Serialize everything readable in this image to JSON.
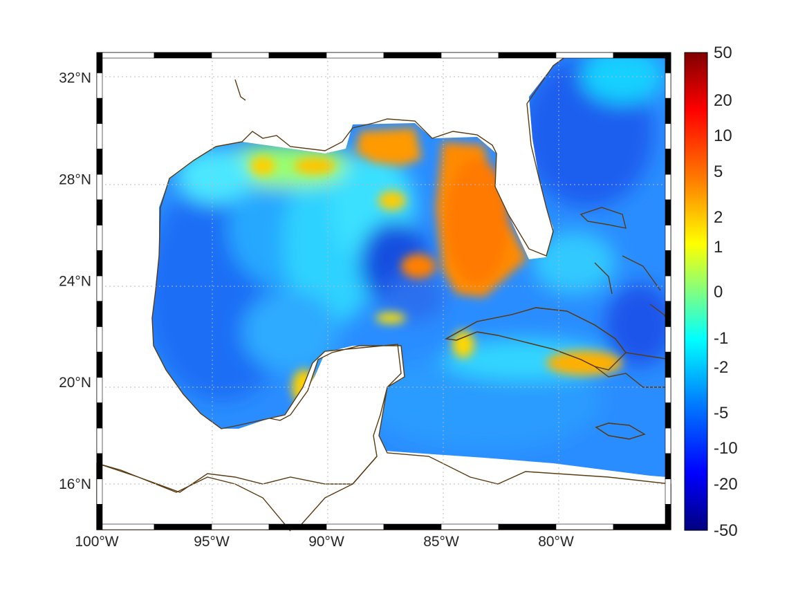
{
  "map": {
    "lon_range": [
      -100,
      -75
    ],
    "lat_range": [
      14.2,
      33
    ],
    "longitude_ticks": [
      {
        "lon": -100,
        "label": "100°W"
      },
      {
        "lon": -95,
        "label": "95°W"
      },
      {
        "lon": -90,
        "label": "90°W"
      },
      {
        "lon": -85,
        "label": "85°W"
      },
      {
        "lon": -80,
        "label": "80°W"
      }
    ],
    "latitude_ticks": [
      {
        "lat": 32,
        "label": "32°N"
      },
      {
        "lat": 28,
        "label": "28°N"
      },
      {
        "lat": 24,
        "label": "24°N"
      },
      {
        "lat": 20,
        "label": "20°N"
      },
      {
        "lat": 16,
        "label": "16°N"
      }
    ],
    "grid": true,
    "coastline_color": "#5a3a10",
    "frame_style": "alternating black-white border"
  },
  "colorbar": {
    "colormap": "jet",
    "placement": "right",
    "tick_labels": [
      "50",
      "20",
      "10",
      "5",
      "2",
      "1",
      "0",
      "-1",
      "-2",
      "-5",
      "-10",
      "-20",
      "-50"
    ],
    "scale": "symmetric-log",
    "colors": [
      "#800000",
      "#ff0000",
      "#ff8000",
      "#ffff00",
      "#80ff80",
      "#00ffff",
      "#0080ff",
      "#0000ff",
      "#000080"
    ]
  }
}
